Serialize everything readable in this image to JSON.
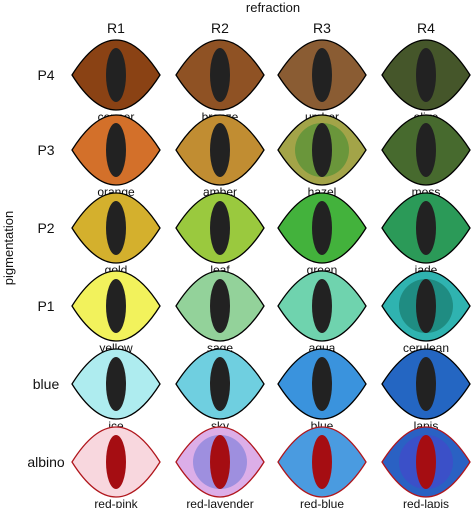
{
  "axes": {
    "column_axis_label": "refraction",
    "row_axis_label": "pigmentation"
  },
  "columns": [
    "R1",
    "R2",
    "R3",
    "R4"
  ],
  "rows": [
    {
      "label": "P4",
      "eyes": [
        {
          "name": "copper",
          "iris": "#8a4214",
          "pupil": "#222222",
          "rim": "#000000"
        },
        {
          "name": "bronze",
          "iris": "#8f5224",
          "pupil": "#222222",
          "rim": "#000000"
        },
        {
          "name": "umber",
          "iris": "#8a5c33",
          "pupil": "#222222",
          "rim": "#000000"
        },
        {
          "name": "olive",
          "iris": "#45562a",
          "pupil": "#222222",
          "rim": "#000000"
        }
      ]
    },
    {
      "label": "P3",
      "eyes": [
        {
          "name": "orange",
          "iris": "#d3702a",
          "pupil": "#222222",
          "rim": "#000000"
        },
        {
          "name": "amber",
          "iris": "#c18d32",
          "pupil": "#222222",
          "rim": "#000000"
        },
        {
          "name": "hazel",
          "iris": "#a3a448",
          "inner": "#6a963b",
          "pupil": "#222222",
          "rim": "#000000"
        },
        {
          "name": "moss",
          "iris": "#476a2e",
          "pupil": "#222222",
          "rim": "#000000"
        }
      ]
    },
    {
      "label": "P2",
      "eyes": [
        {
          "name": "gold",
          "iris": "#d4b02d",
          "pupil": "#222222",
          "rim": "#000000"
        },
        {
          "name": "leaf",
          "iris": "#9ac93e",
          "pupil": "#222222",
          "rim": "#000000"
        },
        {
          "name": "green",
          "iris": "#43b23c",
          "pupil": "#222222",
          "rim": "#000000"
        },
        {
          "name": "jade",
          "iris": "#2b9a58",
          "pupil": "#222222",
          "rim": "#000000"
        }
      ]
    },
    {
      "label": "P1",
      "eyes": [
        {
          "name": "yellow",
          "iris": "#f2f25c",
          "pupil": "#222222",
          "rim": "#000000"
        },
        {
          "name": "sage",
          "iris": "#93d29a",
          "pupil": "#222222",
          "rim": "#000000"
        },
        {
          "name": "aqua",
          "iris": "#6fd3ae",
          "pupil": "#222222",
          "rim": "#000000"
        },
        {
          "name": "cerulean",
          "iris": "#2fb3b0",
          "inner": "#1f8c82",
          "pupil": "#222222",
          "rim": "#000000"
        }
      ]
    },
    {
      "label": "blue",
      "eyes": [
        {
          "name": "ice",
          "iris": "#aeecef",
          "pupil": "#222222",
          "rim": "#000000"
        },
        {
          "name": "sky",
          "iris": "#6fcfe0",
          "pupil": "#222222",
          "rim": "#000000"
        },
        {
          "name": "blue",
          "iris": "#3a93dd",
          "pupil": "#222222",
          "rim": "#000000"
        },
        {
          "name": "lapis",
          "iris": "#2466c2",
          "pupil": "#222222",
          "rim": "#000000"
        }
      ]
    },
    {
      "label": "albino",
      "eyes": [
        {
          "name": "red-pink",
          "iris": "#f8d7de",
          "pupil": "#a50d12",
          "rim": "#b0161c"
        },
        {
          "name": "red-lavender",
          "iris": "#dcaee8",
          "inner": "#9e8fdf",
          "pupil": "#a50d12",
          "rim": "#b0161c"
        },
        {
          "name": "red-blue",
          "iris": "#4a9be0",
          "pupil": "#a50d12",
          "rim": "#b0161c"
        },
        {
          "name": "red-lapis",
          "iris": "#2a61c3",
          "inner": "#3b50c8",
          "pupil": "#a50d12",
          "rim": "#b0161c"
        }
      ]
    }
  ]
}
